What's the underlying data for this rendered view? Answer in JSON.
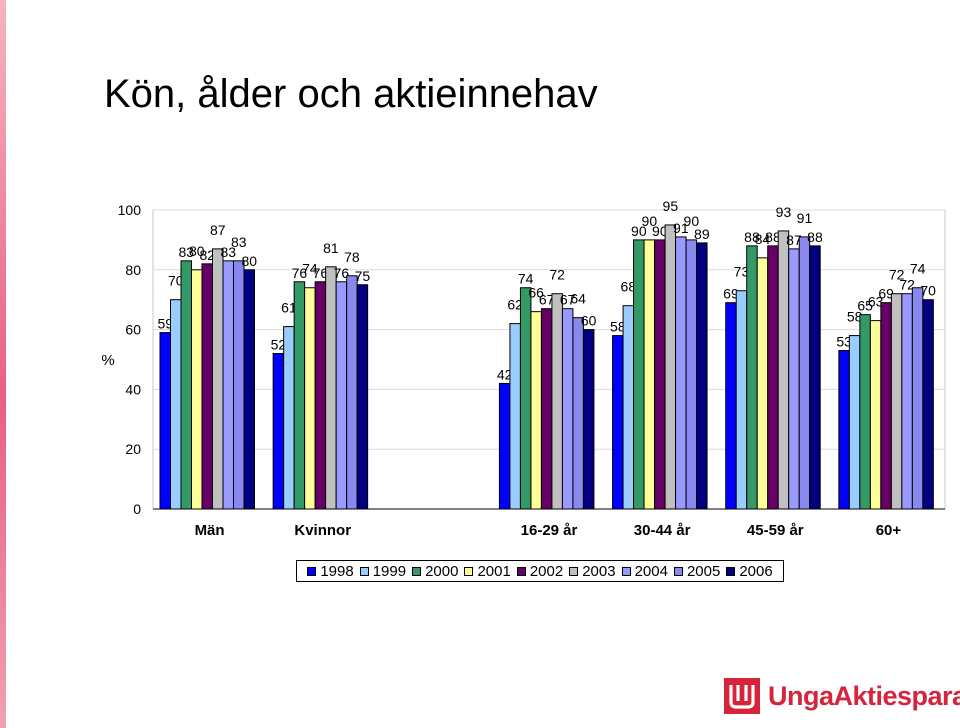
{
  "page": {
    "title": "Kön, ålder och aktieinnehav",
    "logo_text": "UngaAktiesparare",
    "accent_color": "#d6243c"
  },
  "chart_data": {
    "type": "bar",
    "title": "",
    "xlabel": "",
    "ylabel": "%",
    "ylim": [
      0,
      100
    ],
    "yticks": [
      0,
      20,
      40,
      60,
      80,
      100
    ],
    "grid": true,
    "legend_position": "bottom",
    "categories": [
      "Män",
      "Kvinnor",
      "",
      "16-29 år",
      "30-44 år",
      "45-59 år",
      "60+"
    ],
    "series": [
      {
        "name": "1998",
        "color": "#0000ff",
        "values": [
          59,
          52,
          null,
          42,
          58,
          69,
          53
        ]
      },
      {
        "name": "1999",
        "color": "#99ccff",
        "values": [
          70,
          61,
          null,
          62,
          68,
          73,
          58
        ]
      },
      {
        "name": "2000",
        "color": "#339966",
        "values": [
          83,
          76,
          null,
          74,
          90,
          88,
          65
        ]
      },
      {
        "name": "2001",
        "color": "#ffff99",
        "values": [
          80,
          74,
          null,
          66,
          90,
          84,
          63
        ]
      },
      {
        "name": "2002",
        "color": "#660066",
        "values": [
          82,
          76,
          null,
          67,
          90,
          88,
          69
        ]
      },
      {
        "name": "2003",
        "color": "#c0c0c0",
        "values": [
          87,
          81,
          null,
          72,
          95,
          93,
          72
        ]
      },
      {
        "name": "2004",
        "color": "#9999ff",
        "values": [
          83,
          76,
          null,
          67,
          91,
          87,
          72
        ]
      },
      {
        "name": "2005",
        "color": "#8888ee",
        "values": [
          83,
          78,
          null,
          64,
          90,
          91,
          74
        ]
      },
      {
        "name": "2006",
        "color": "#000080",
        "values": [
          80,
          75,
          null,
          60,
          89,
          88,
          70
        ]
      }
    ]
  }
}
